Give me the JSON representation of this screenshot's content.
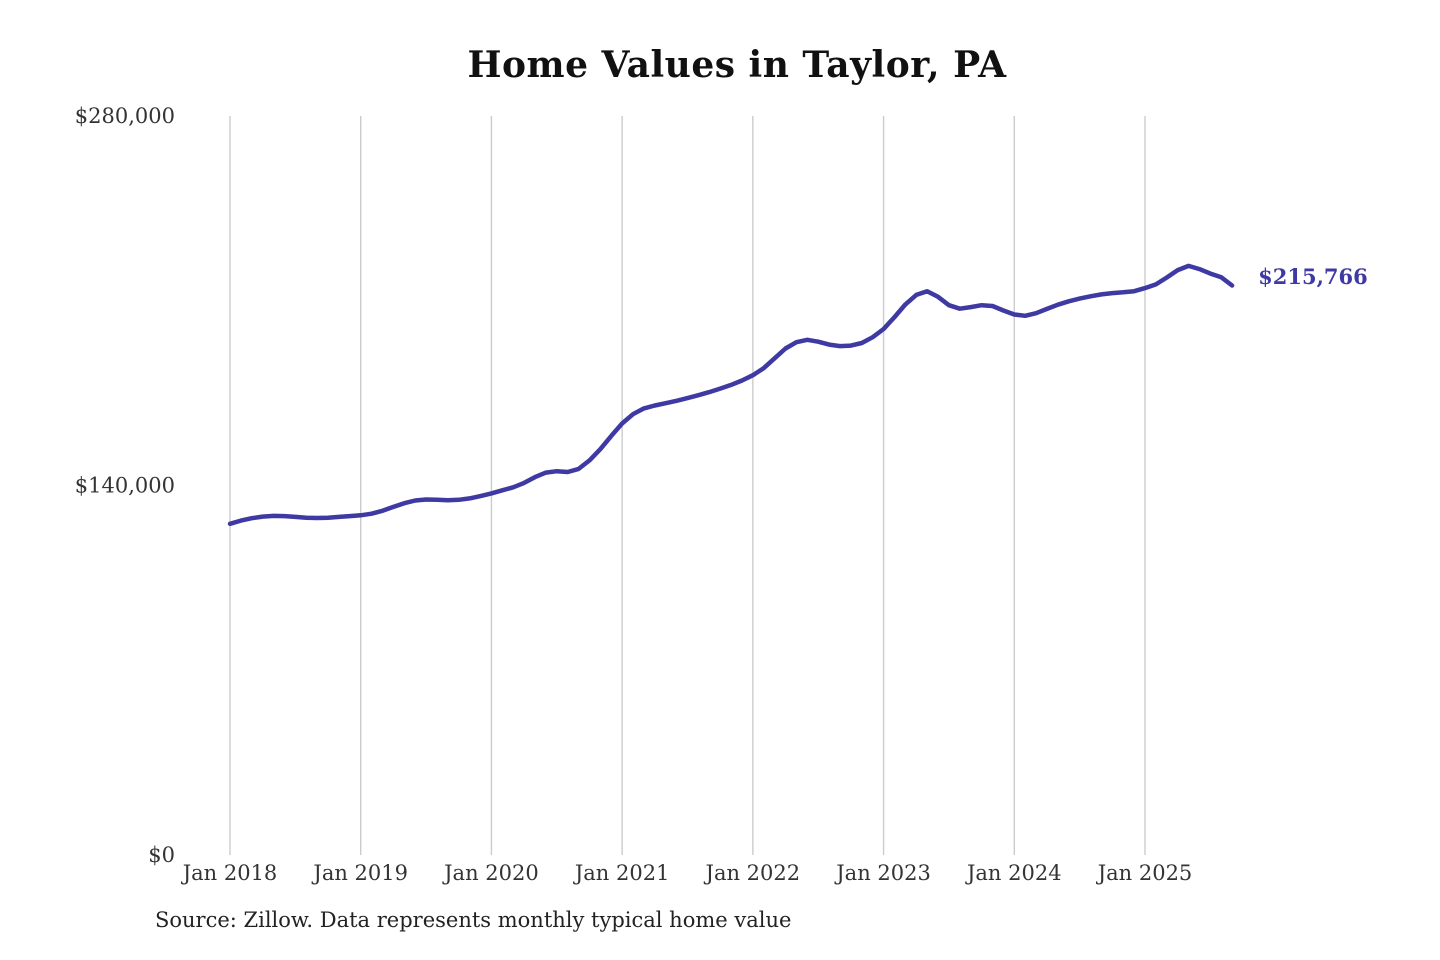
{
  "chart": {
    "title": "Home Values in Taylor, PA",
    "source": "Source: Zillow. Data represents monthly typical home value",
    "end_label": "$215,766"
  },
  "chart_data": {
    "type": "line",
    "title": "Home Values in Taylor, PA",
    "series_name": "Monthly typical home value",
    "unit": "USD",
    "x_start_month": "2018-01",
    "x_end_month": "2025-09",
    "x_step": "1 month",
    "ylim": [
      0,
      280000
    ],
    "grid": "vertical-only",
    "legend": false,
    "accent_color": "#3f3aa3",
    "gridline_color": "#cccccc",
    "end_value": 215766,
    "y_ticks": [
      {
        "label": "$0",
        "value": 0
      },
      {
        "label": "$140,000",
        "value": 140000
      },
      {
        "label": "$280,000",
        "value": 280000
      }
    ],
    "x_ticks": [
      {
        "label": "Jan 2018",
        "month_index": 0
      },
      {
        "label": "Jan 2019",
        "month_index": 12
      },
      {
        "label": "Jan 2020",
        "month_index": 24
      },
      {
        "label": "Jan 2021",
        "month_index": 36
      },
      {
        "label": "Jan 2022",
        "month_index": 48
      },
      {
        "label": "Jan 2023",
        "month_index": 60
      },
      {
        "label": "Jan 2024",
        "month_index": 72
      },
      {
        "label": "Jan 2025",
        "month_index": 84
      }
    ],
    "values": [
      125500,
      126700,
      127600,
      128200,
      128500,
      128400,
      128100,
      127800,
      127700,
      127800,
      128100,
      128400,
      128700,
      129300,
      130400,
      131900,
      133300,
      134300,
      134700,
      134600,
      134400,
      134600,
      135100,
      136000,
      137000,
      138200,
      139300,
      141000,
      143200,
      144900,
      145400,
      145100,
      146300,
      149500,
      153800,
      158800,
      163500,
      167000,
      169200,
      170300,
      171200,
      172100,
      173100,
      174200,
      175400,
      176700,
      178100,
      179800,
      181800,
      184500,
      188200,
      191900,
      194300,
      195200,
      194500,
      193400,
      192800,
      193000,
      194000,
      196200,
      199300,
      203800,
      208600,
      212200,
      213600,
      211500,
      208300,
      207000,
      207600,
      208300,
      208000,
      206300,
      204800,
      204300,
      205300,
      206900,
      208500,
      209800,
      210800,
      211700,
      212400,
      212900,
      213200,
      213600,
      214800,
      216200,
      218800,
      221600,
      223200,
      222000,
      220300,
      218900,
      215766
    ]
  }
}
